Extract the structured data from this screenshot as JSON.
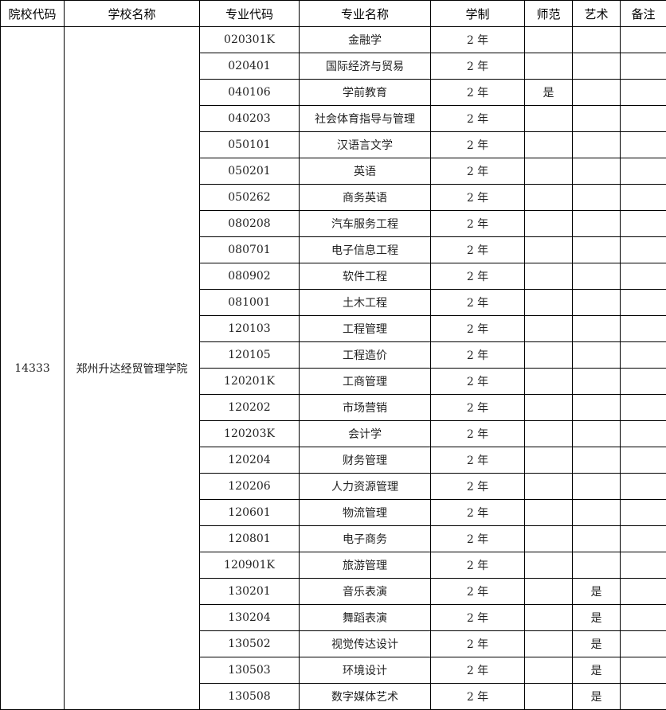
{
  "headers": [
    "院校代码",
    "学校名称",
    "专业代码",
    "专业名称",
    "学制",
    "师范",
    "艺术",
    "备注"
  ],
  "school_code": "14333",
  "school_name": "郑州升达经贸管理学院",
  "rows": [
    {
      "code": "020301K",
      "name": "金融学",
      "years": "2 年",
      "normal": "",
      "art": "",
      "note": ""
    },
    {
      "code": "020401",
      "name": "国际经济与贸易",
      "years": "2 年",
      "normal": "",
      "art": "",
      "note": ""
    },
    {
      "code": "040106",
      "name": "学前教育",
      "years": "2 年",
      "normal": "是",
      "art": "",
      "note": ""
    },
    {
      "code": "040203",
      "name": "社会体育指导与管理",
      "years": "2 年",
      "normal": "",
      "art": "",
      "note": ""
    },
    {
      "code": "050101",
      "name": "汉语言文学",
      "years": "2 年",
      "normal": "",
      "art": "",
      "note": ""
    },
    {
      "code": "050201",
      "name": "英语",
      "years": "2 年",
      "normal": "",
      "art": "",
      "note": ""
    },
    {
      "code": "050262",
      "name": "商务英语",
      "years": "2 年",
      "normal": "",
      "art": "",
      "note": ""
    },
    {
      "code": "080208",
      "name": "汽车服务工程",
      "years": "2 年",
      "normal": "",
      "art": "",
      "note": ""
    },
    {
      "code": "080701",
      "name": "电子信息工程",
      "years": "2 年",
      "normal": "",
      "art": "",
      "note": ""
    },
    {
      "code": "080902",
      "name": "软件工程",
      "years": "2 年",
      "normal": "",
      "art": "",
      "note": ""
    },
    {
      "code": "081001",
      "name": "土木工程",
      "years": "2 年",
      "normal": "",
      "art": "",
      "note": ""
    },
    {
      "code": "120103",
      "name": "工程管理",
      "years": "2 年",
      "normal": "",
      "art": "",
      "note": ""
    },
    {
      "code": "120105",
      "name": "工程造价",
      "years": "2 年",
      "normal": "",
      "art": "",
      "note": ""
    },
    {
      "code": "120201K",
      "name": "工商管理",
      "years": "2 年",
      "normal": "",
      "art": "",
      "note": ""
    },
    {
      "code": "120202",
      "name": "市场营销",
      "years": "2 年",
      "normal": "",
      "art": "",
      "note": ""
    },
    {
      "code": "120203K",
      "name": "会计学",
      "years": "2 年",
      "normal": "",
      "art": "",
      "note": ""
    },
    {
      "code": "120204",
      "name": "财务管理",
      "years": "2 年",
      "normal": "",
      "art": "",
      "note": ""
    },
    {
      "code": "120206",
      "name": "人力资源管理",
      "years": "2 年",
      "normal": "",
      "art": "",
      "note": ""
    },
    {
      "code": "120601",
      "name": "物流管理",
      "years": "2 年",
      "normal": "",
      "art": "",
      "note": ""
    },
    {
      "code": "120801",
      "name": "电子商务",
      "years": "2 年",
      "normal": "",
      "art": "",
      "note": ""
    },
    {
      "code": "120901K",
      "name": "旅游管理",
      "years": "2 年",
      "normal": "",
      "art": "",
      "note": ""
    },
    {
      "code": "130201",
      "name": "音乐表演",
      "years": "2 年",
      "normal": "",
      "art": "是",
      "note": ""
    },
    {
      "code": "130204",
      "name": "舞蹈表演",
      "years": "2 年",
      "normal": "",
      "art": "是",
      "note": ""
    },
    {
      "code": "130502",
      "name": "视觉传达设计",
      "years": "2 年",
      "normal": "",
      "art": "是",
      "note": ""
    },
    {
      "code": "130503",
      "name": "环境设计",
      "years": "2 年",
      "normal": "",
      "art": "是",
      "note": ""
    },
    {
      "code": "130508",
      "name": "数字媒体艺术",
      "years": "2 年",
      "normal": "",
      "art": "是",
      "note": ""
    }
  ]
}
